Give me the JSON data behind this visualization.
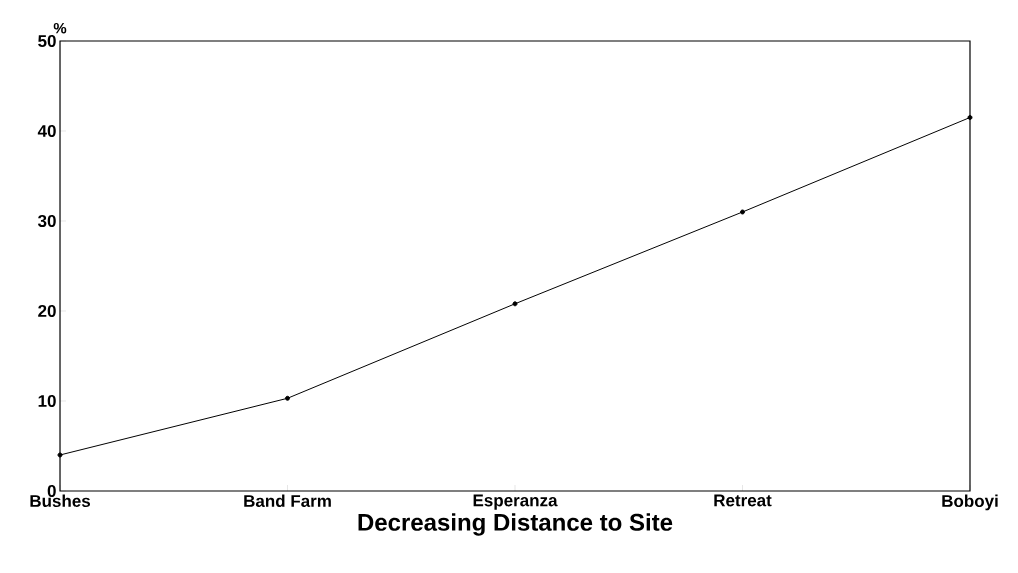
{
  "chart_data": {
    "type": "line",
    "xlabel": "Decreasing Distance to Site",
    "ylabel": "%",
    "categories": [
      "Bushes",
      "Band Farm",
      "Esperanza",
      "Retreat",
      "Boboyi"
    ],
    "values": [
      4,
      10.3,
      20.8,
      31,
      41.5
    ],
    "color": "#000000",
    "marker": "circle",
    "ylim": [
      0,
      50
    ],
    "yticks": [
      0,
      10,
      20,
      30,
      40,
      50
    ]
  }
}
